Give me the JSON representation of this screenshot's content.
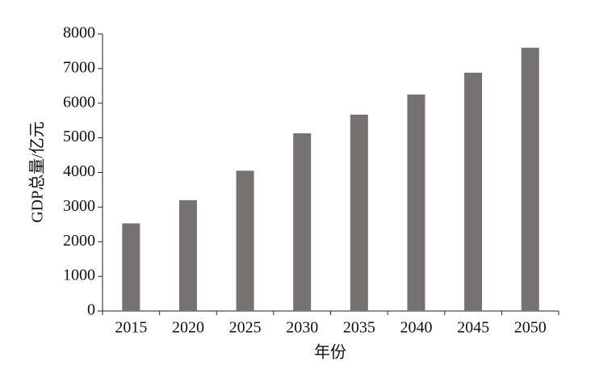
{
  "chart_data": {
    "type": "bar",
    "categories": [
      "2015",
      "2020",
      "2025",
      "2030",
      "2035",
      "2040",
      "2045",
      "2050"
    ],
    "values": [
      2530,
      3200,
      4050,
      5130,
      5670,
      6250,
      6880,
      7600
    ],
    "color": "#767272",
    "x_label": "年份",
    "y_label": "GDP总量/亿元",
    "ylim": [
      0,
      8000
    ],
    "yticks": [
      0,
      1000,
      2000,
      3000,
      4000,
      5000,
      6000,
      7000,
      8000
    ],
    "grid": false
  }
}
